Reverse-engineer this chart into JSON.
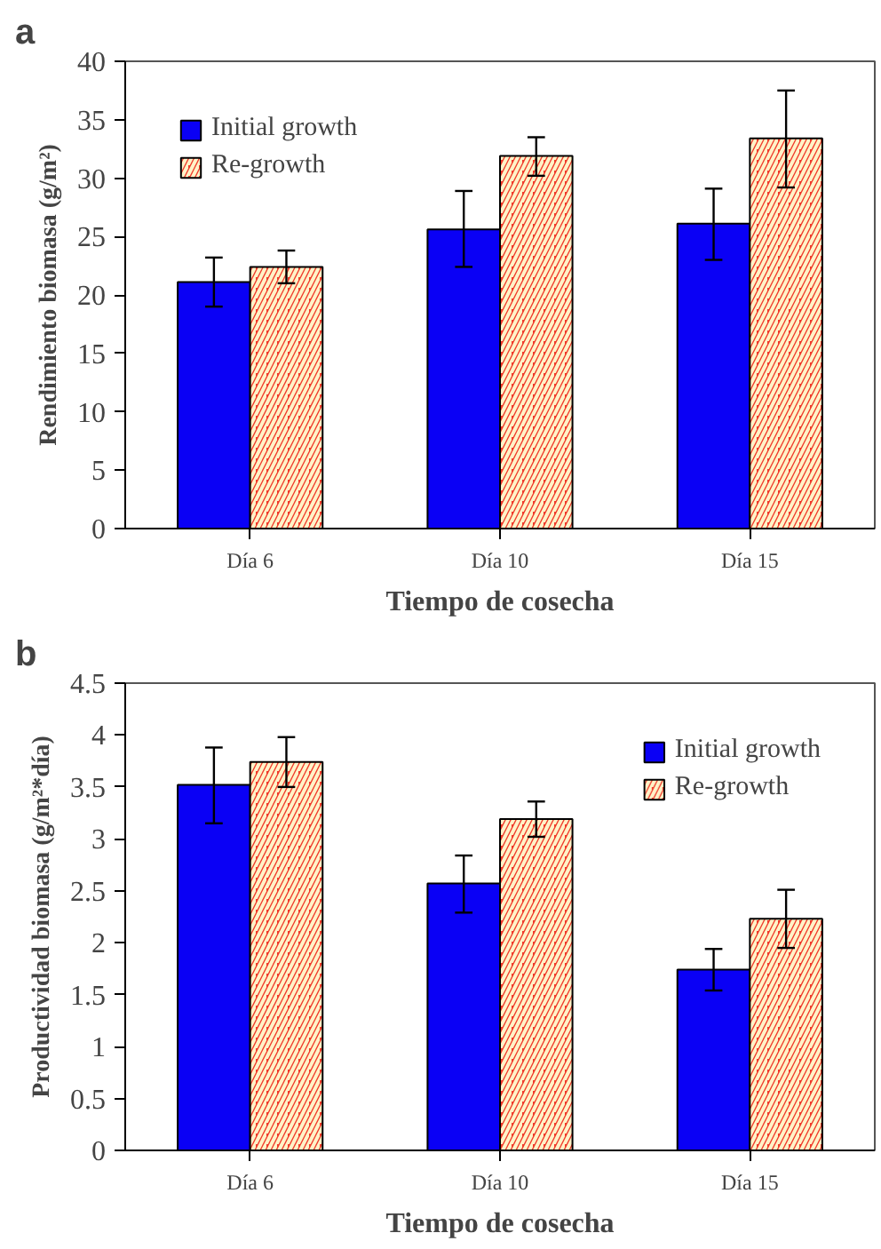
{
  "chart_data": [
    {
      "type": "bar",
      "title": "a",
      "xlabel": "Tiempo de cosecha",
      "ylabel": "Rendimiento biomasa (g/m²)",
      "categories": [
        "Día 6",
        "Día 10",
        "Día 15"
      ],
      "ylim": [
        0,
        40
      ],
      "yticks": [
        0,
        5,
        10,
        15,
        20,
        25,
        30,
        35,
        40
      ],
      "grid": false,
      "legend": "top left",
      "series": [
        {
          "name": "Initial growth",
          "color": "#0a00f5",
          "values": [
            21.1,
            25.6,
            26.1
          ],
          "errors": [
            [
              19.0,
              23.2
            ],
            [
              22.4,
              28.9
            ],
            [
              23.0,
              29.1
            ]
          ]
        },
        {
          "name": "Re-growth",
          "color": "#f03a2a",
          "values": [
            22.4,
            31.9,
            33.4
          ],
          "errors": [
            [
              21.0,
              23.8
            ],
            [
              30.2,
              33.5
            ],
            [
              29.2,
              37.5
            ]
          ]
        }
      ]
    },
    {
      "type": "bar",
      "title": "b",
      "xlabel": "Tiempo de cosecha",
      "ylabel": "Productividad biomasa (g/m²*día)",
      "categories": [
        "Día 6",
        "Día 10",
        "Día 15"
      ],
      "ylim": [
        0,
        4.5
      ],
      "yticks": [
        0,
        0.5,
        1,
        1.5,
        2,
        2.5,
        3,
        3.5,
        4,
        4.5
      ],
      "grid": false,
      "legend": "top right",
      "series": [
        {
          "name": "Initial growth",
          "color": "#0a00f5",
          "values": [
            3.52,
            2.57,
            1.74
          ],
          "errors": [
            [
              3.15,
              3.88
            ],
            [
              2.29,
              2.84
            ],
            [
              1.54,
              1.94
            ]
          ]
        },
        {
          "name": "Re-growth",
          "color": "#f03a2a",
          "values": [
            3.74,
            3.19,
            2.23
          ],
          "errors": [
            [
              3.5,
              3.98
            ],
            [
              3.02,
              3.36
            ],
            [
              1.95,
              2.51
            ]
          ]
        }
      ]
    }
  ]
}
